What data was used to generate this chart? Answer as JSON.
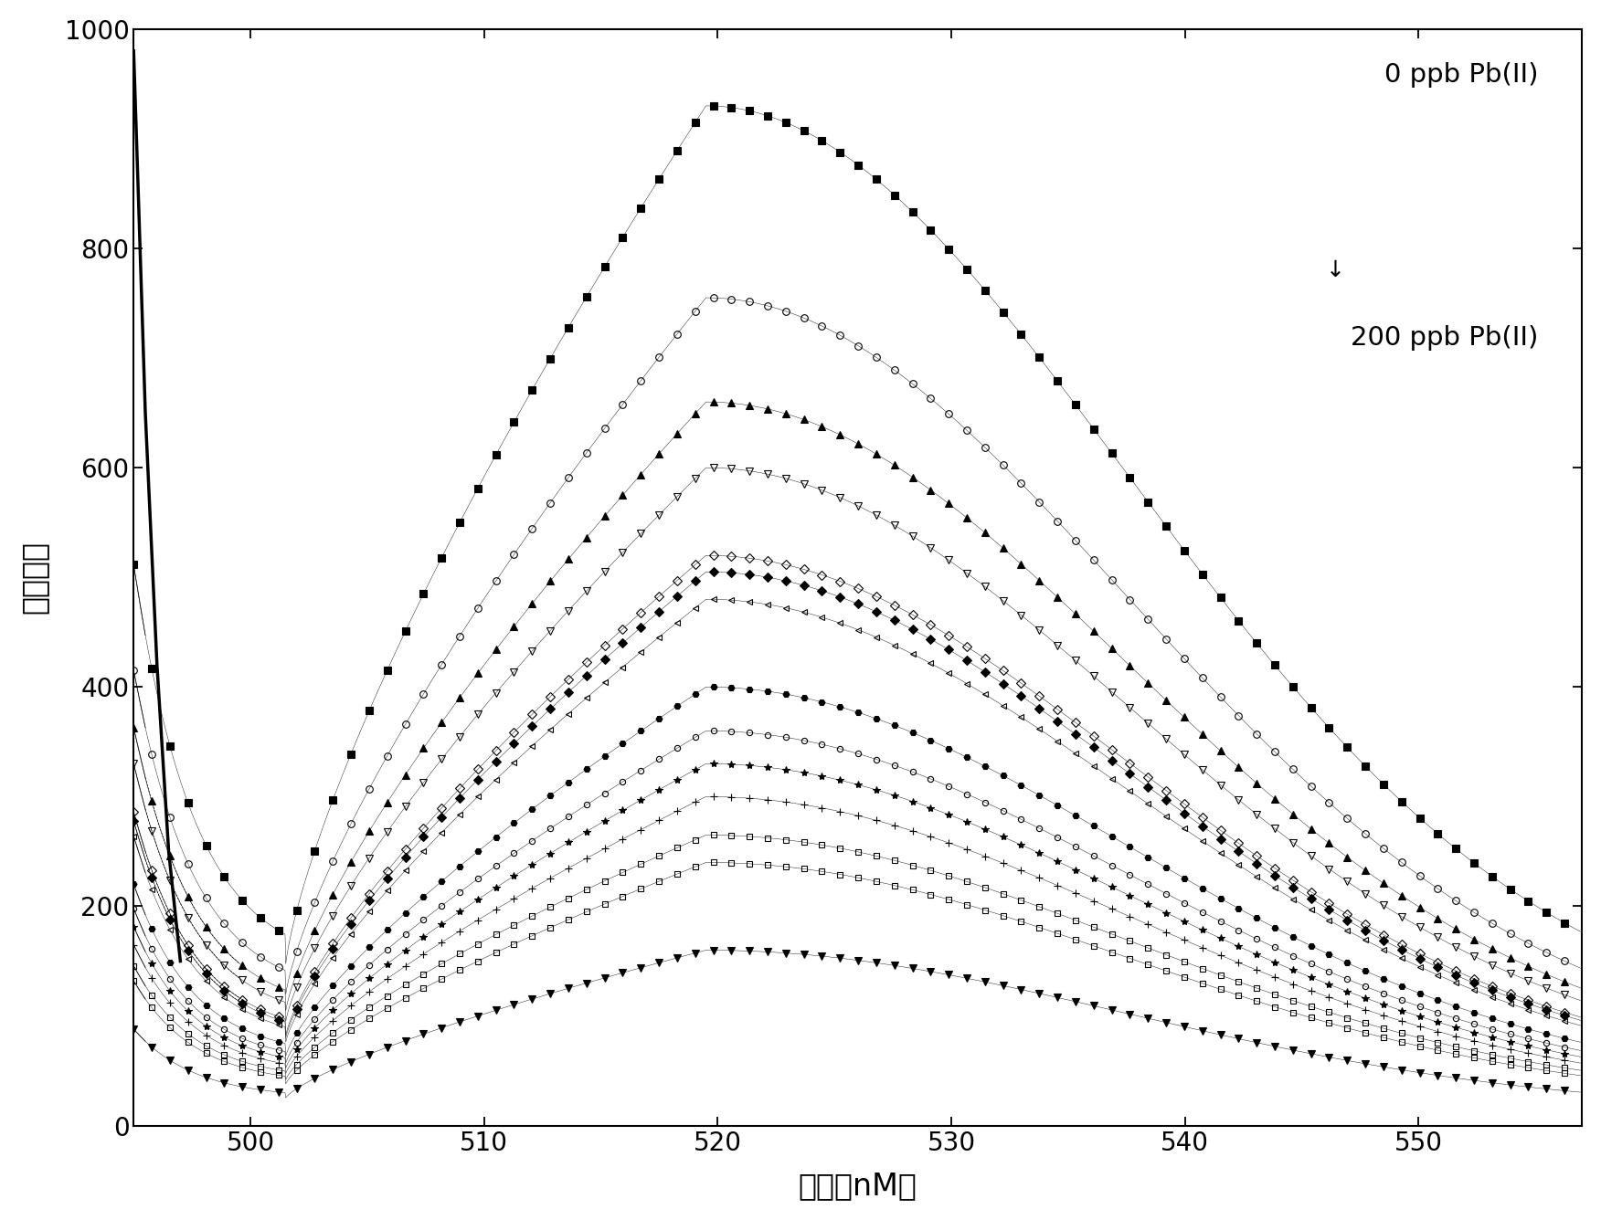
{
  "xlabel": "波长（nM）",
  "ylabel": "荧光强度",
  "xlim": [
    495,
    557
  ],
  "ylim": [
    0,
    1000
  ],
  "xticks": [
    500,
    510,
    520,
    530,
    540,
    550
  ],
  "yticks": [
    0,
    200,
    400,
    600,
    800,
    1000
  ],
  "annotation_top": "0 ppb Pb(II)",
  "annotation_bottom": "200 ppb Pb(II)",
  "background_color": "#ffffff",
  "x_start": 495.0,
  "x_min": 501.5,
  "x_peak": 519.5,
  "x_end": 557.0,
  "series": [
    {
      "peak": 930,
      "marker": "s",
      "markersize": 5.5,
      "mfc": "black"
    },
    {
      "peak": 755,
      "marker": "o",
      "markersize": 5.5,
      "mfc": "none"
    },
    {
      "peak": 660,
      "marker": "^",
      "markersize": 5.5,
      "mfc": "black"
    },
    {
      "peak": 600,
      "marker": "v",
      "markersize": 5.5,
      "mfc": "none"
    },
    {
      "peak": 520,
      "marker": "D",
      "markersize": 5.0,
      "mfc": "none"
    },
    {
      "peak": 505,
      "marker": "D",
      "markersize": 5.0,
      "mfc": "black"
    },
    {
      "peak": 480,
      "marker": "<",
      "markersize": 5.0,
      "mfc": "none"
    },
    {
      "peak": 400,
      "marker": "H",
      "markersize": 5.0,
      "mfc": "black"
    },
    {
      "peak": 360,
      "marker": "o",
      "markersize": 4.5,
      "mfc": "none"
    },
    {
      "peak": 330,
      "marker": "*",
      "markersize": 6.0,
      "mfc": "black"
    },
    {
      "peak": 300,
      "marker": "+",
      "markersize": 5.5,
      "mfc": "black"
    },
    {
      "peak": 265,
      "marker": "s",
      "markersize": 4.0,
      "mfc": "none"
    },
    {
      "peak": 240,
      "marker": "s",
      "markersize": 4.0,
      "mfc": "none"
    },
    {
      "peak": 160,
      "marker": "v",
      "markersize": 5.5,
      "mfc": "black"
    }
  ]
}
